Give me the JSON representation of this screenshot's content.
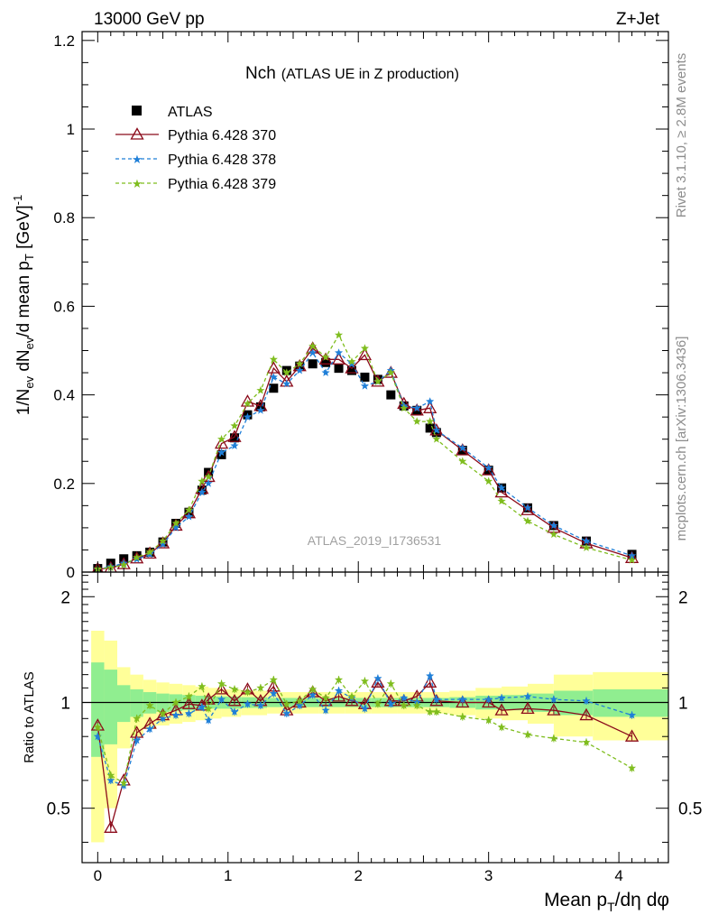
{
  "header": {
    "energy_label": "13000 GeV pp",
    "process_label": "Z+Jet",
    "title_main": "Nch",
    "title_sub": "(ATLAS UE in Z production)",
    "watermark": "ATLAS_2019_I1736531",
    "side_rivet": "Rivet 3.1.10, ≥ 2.8M events",
    "side_mcplots": "mcplots.cern.ch [arXiv:1306.3436]"
  },
  "axes": {
    "main_ylabel": "1/N_ev dN_ev/d mean p_T [GeV]^-1",
    "ratio_ylabel": "Ratio to ATLAS",
    "xlabel": "Mean p_T/dη dφ"
  },
  "colors": {
    "atlas": "#000000",
    "p370": "#8b0a1a",
    "p378": "#1f7fd8",
    "p379": "#7fbd1e",
    "band_inner": "#90ee90",
    "band_outer": "#ffff99"
  },
  "chart_data": {
    "type": "line",
    "xlim": [
      -0.12,
      4.38
    ],
    "main_ylim": [
      0,
      1.22
    ],
    "ratio_ylim": [
      0.35,
      2.35
    ],
    "ratio_scale": "log",
    "x": [
      0.0,
      0.1,
      0.2,
      0.3,
      0.4,
      0.5,
      0.6,
      0.7,
      0.8,
      0.85,
      0.95,
      1.05,
      1.15,
      1.25,
      1.35,
      1.45,
      1.55,
      1.65,
      1.75,
      1.85,
      1.95,
      2.05,
      2.15,
      2.25,
      2.35,
      2.45,
      2.55,
      2.6,
      2.8,
      3.0,
      3.1,
      3.3,
      3.5,
      3.75,
      4.1
    ],
    "series": [
      {
        "name": "ATLAS",
        "values": [
          0.008,
          0.02,
          0.03,
          0.037,
          0.045,
          0.068,
          0.11,
          0.135,
          0.185,
          0.225,
          0.265,
          0.303,
          0.355,
          0.373,
          0.415,
          0.455,
          0.465,
          0.47,
          0.473,
          0.46,
          0.455,
          0.44,
          0.435,
          0.4,
          0.375,
          0.365,
          0.325,
          0.315,
          0.275,
          0.23,
          0.19,
          0.145,
          0.105,
          0.07,
          0.04
        ]
      },
      {
        "name": "Pythia 6.428 370",
        "values": [
          0.007,
          0.009,
          0.018,
          0.031,
          0.042,
          0.065,
          0.105,
          0.133,
          0.188,
          0.215,
          0.29,
          0.305,
          0.385,
          0.375,
          0.46,
          0.43,
          0.465,
          0.505,
          0.48,
          0.48,
          0.46,
          0.49,
          0.43,
          0.45,
          0.38,
          0.365,
          0.37,
          0.32,
          0.275,
          0.23,
          0.18,
          0.14,
          0.1,
          0.065,
          0.032
        ]
      },
      {
        "name": "Pythia 6.428 378",
        "values": [
          0.0065,
          0.012,
          0.02,
          0.029,
          0.04,
          0.063,
          0.1,
          0.125,
          0.18,
          0.2,
          0.27,
          0.285,
          0.35,
          0.365,
          0.44,
          0.425,
          0.455,
          0.495,
          0.45,
          0.495,
          0.47,
          0.42,
          0.43,
          0.455,
          0.375,
          0.37,
          0.385,
          0.32,
          0.28,
          0.235,
          0.19,
          0.145,
          0.105,
          0.07,
          0.037
        ]
      },
      {
        "name": "Pythia 6.428 379",
        "values": [
          0.007,
          0.01,
          0.016,
          0.033,
          0.045,
          0.07,
          0.11,
          0.14,
          0.205,
          0.215,
          0.3,
          0.33,
          0.38,
          0.41,
          0.48,
          0.45,
          0.47,
          0.51,
          0.485,
          0.535,
          0.475,
          0.505,
          0.43,
          0.45,
          0.37,
          0.34,
          0.34,
          0.3,
          0.25,
          0.205,
          0.16,
          0.115,
          0.085,
          0.055,
          0.027
        ]
      }
    ],
    "ratio_series": [
      {
        "name": "Pythia 6.428 370",
        "values": [
          0.86,
          0.44,
          0.6,
          0.82,
          0.87,
          0.92,
          0.95,
          0.99,
          0.98,
          1.02,
          1.09,
          1.01,
          1.09,
          1.01,
          1.11,
          0.95,
          1.0,
          1.07,
          1.01,
          1.04,
          1.01,
          0.99,
          1.14,
          1.01,
          1.01,
          1.04,
          1.14,
          1.01,
          1.0,
          1.0,
          0.95,
          0.96,
          0.95,
          0.92,
          0.8
        ]
      },
      {
        "name": "Pythia 6.428 378",
        "values": [
          0.8,
          0.6,
          0.58,
          0.78,
          0.84,
          0.9,
          0.92,
          0.93,
          0.97,
          0.89,
          1.02,
          0.94,
          0.99,
          0.98,
          1.06,
          0.93,
          0.98,
          1.05,
          0.95,
          1.08,
          1.03,
          0.96,
          1.17,
          0.99,
          1.03,
          1.0,
          1.19,
          1.02,
          1.02,
          1.02,
          1.03,
          1.04,
          1.02,
          1.01,
          0.92
        ]
      },
      {
        "name": "Pythia 6.428 379",
        "values": [
          0.85,
          0.62,
          0.59,
          0.9,
          0.98,
          0.93,
          1.0,
          1.04,
          1.11,
          0.96,
          1.13,
          1.09,
          1.07,
          1.1,
          1.16,
          0.99,
          1.01,
          1.09,
          1.03,
          1.16,
          1.04,
          1.15,
          0.99,
          1.13,
          0.98,
          0.98,
          0.94,
          0.94,
          0.91,
          0.89,
          0.85,
          0.81,
          0.79,
          0.77,
          0.65
        ]
      }
    ],
    "bands": {
      "edges": [
        -0.05,
        0.05,
        0.15,
        0.25,
        0.35,
        0.45,
        0.55,
        0.65,
        0.75,
        0.85,
        0.95,
        1.1,
        1.3,
        1.5,
        1.7,
        1.9,
        2.1,
        2.3,
        2.5,
        2.7,
        2.9,
        3.1,
        3.3,
        3.5,
        3.8,
        4.4
      ],
      "inner": [
        0.3,
        0.24,
        0.12,
        0.09,
        0.07,
        0.06,
        0.055,
        0.05,
        0.045,
        0.04,
        0.04,
        0.035,
        0.03,
        0.03,
        0.03,
        0.03,
        0.03,
        0.03,
        0.03,
        0.035,
        0.045,
        0.05,
        0.06,
        0.08,
        0.09
      ],
      "outer": [
        0.6,
        0.5,
        0.26,
        0.2,
        0.16,
        0.14,
        0.13,
        0.12,
        0.11,
        0.1,
        0.09,
        0.08,
        0.07,
        0.07,
        0.07,
        0.07,
        0.07,
        0.07,
        0.07,
        0.08,
        0.1,
        0.11,
        0.13,
        0.2,
        0.22
      ]
    },
    "legend": [
      "ATLAS",
      "Pythia 6.428 370",
      "Pythia 6.428 378",
      "Pythia 6.428 379"
    ],
    "legend_position": "top-left",
    "main_yticks": [
      "0",
      "0.2",
      "0.4",
      "0.6",
      "0.8",
      "1",
      "1.2"
    ],
    "ratio_yticks": [
      "0.5",
      "1",
      "2"
    ],
    "xticks": [
      "0",
      "1",
      "2",
      "3",
      "4"
    ]
  }
}
